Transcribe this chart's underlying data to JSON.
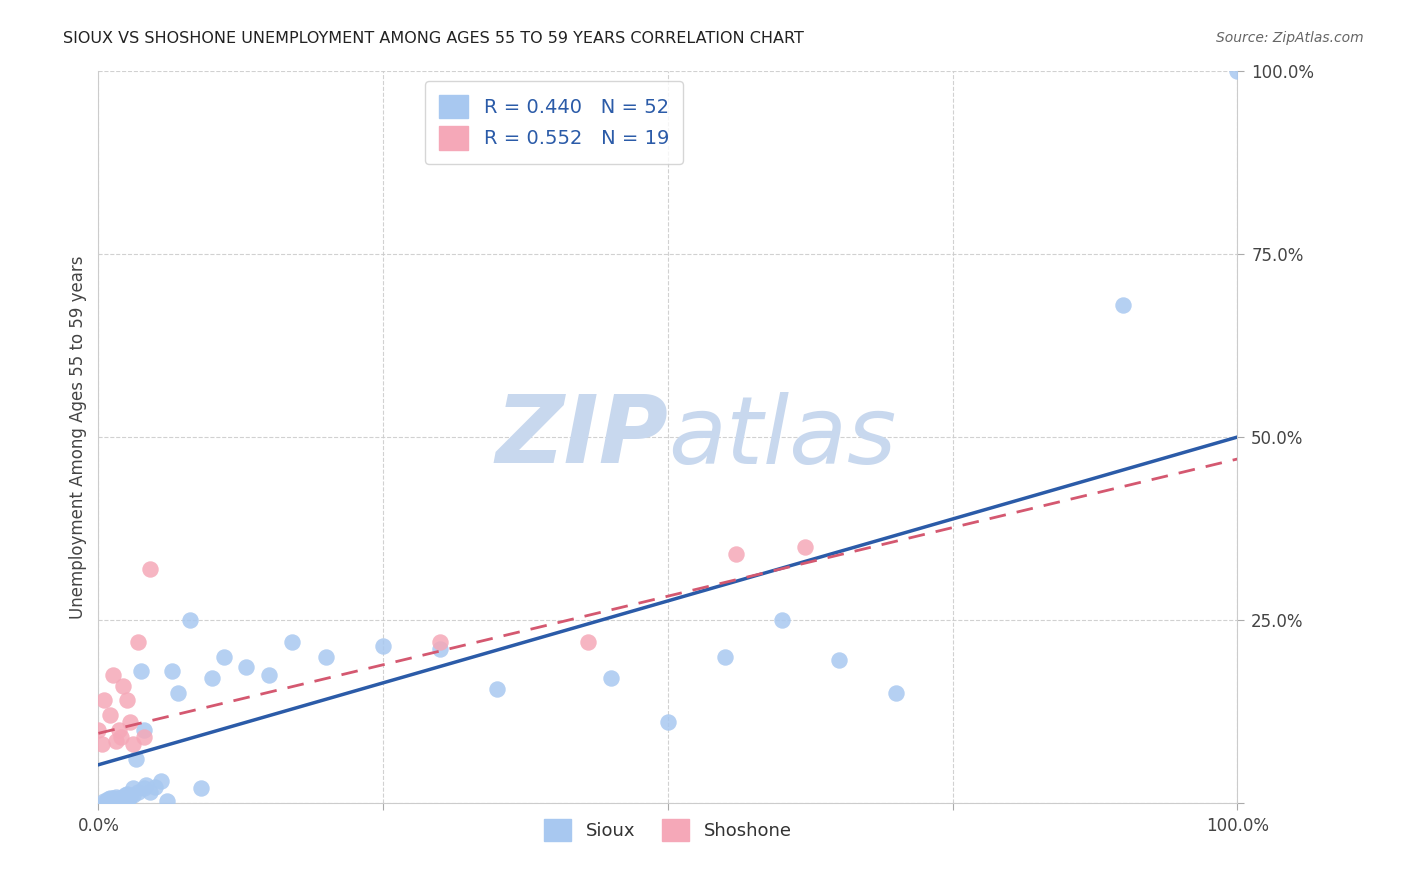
{
  "title": "SIOUX VS SHOSHONE UNEMPLOYMENT AMONG AGES 55 TO 59 YEARS CORRELATION CHART",
  "source": "Source: ZipAtlas.com",
  "ylabel": "Unemployment Among Ages 55 to 59 years",
  "xlim": [
    0,
    1.0
  ],
  "ylim": [
    0,
    1.0
  ],
  "xticks": [
    0.0,
    0.25,
    0.5,
    0.75,
    1.0
  ],
  "xticklabels": [
    "0.0%",
    "",
    "",
    "",
    "100.0%"
  ],
  "yticks": [
    0.0,
    0.25,
    0.5,
    0.75,
    1.0
  ],
  "yticklabels": [
    "",
    "25.0%",
    "50.0%",
    "75.0%",
    "100.0%"
  ],
  "sioux_R": 0.44,
  "sioux_N": 52,
  "shoshone_R": 0.552,
  "shoshone_N": 19,
  "sioux_color": "#A8C8F0",
  "shoshone_color": "#F5A8B8",
  "sioux_line_color": "#2B5BA8",
  "shoshone_line_color": "#D45870",
  "legend_text_color": "#2B5BA8",
  "watermark_zip_color": "#C8D8EE",
  "watermark_atlas_color": "#C8D8EE",
  "background_color": "#FFFFFF",
  "grid_color": "#CCCCCC",
  "sioux_x": [
    0.005,
    0.007,
    0.008,
    0.01,
    0.01,
    0.012,
    0.013,
    0.015,
    0.015,
    0.017,
    0.018,
    0.02,
    0.02,
    0.022,
    0.023,
    0.025,
    0.025,
    0.027,
    0.028,
    0.03,
    0.03,
    0.033,
    0.035,
    0.037,
    0.04,
    0.04,
    0.042,
    0.045,
    0.05,
    0.055,
    0.06,
    0.065,
    0.07,
    0.08,
    0.09,
    0.1,
    0.11,
    0.13,
    0.15,
    0.17,
    0.2,
    0.25,
    0.3,
    0.35,
    0.45,
    0.5,
    0.55,
    0.6,
    0.65,
    0.7,
    0.9,
    1.0
  ],
  "sioux_y": [
    0.002,
    0.003,
    0.005,
    0.004,
    0.006,
    0.003,
    0.007,
    0.005,
    0.008,
    0.004,
    0.006,
    0.003,
    0.005,
    0.007,
    0.01,
    0.008,
    0.012,
    0.006,
    0.009,
    0.01,
    0.02,
    0.06,
    0.015,
    0.18,
    0.02,
    0.1,
    0.025,
    0.015,
    0.022,
    0.03,
    0.002,
    0.18,
    0.15,
    0.25,
    0.02,
    0.17,
    0.2,
    0.185,
    0.175,
    0.22,
    0.2,
    0.215,
    0.21,
    0.155,
    0.17,
    0.11,
    0.2,
    0.25,
    0.195,
    0.15,
    0.68,
    1.0
  ],
  "shoshone_x": [
    0.0,
    0.003,
    0.005,
    0.01,
    0.013,
    0.015,
    0.018,
    0.02,
    0.022,
    0.025,
    0.028,
    0.03,
    0.035,
    0.04,
    0.045,
    0.3,
    0.43,
    0.56,
    0.62
  ],
  "shoshone_y": [
    0.1,
    0.08,
    0.14,
    0.12,
    0.175,
    0.085,
    0.1,
    0.09,
    0.16,
    0.14,
    0.11,
    0.08,
    0.22,
    0.09,
    0.32,
    0.22,
    0.22,
    0.34,
    0.35
  ],
  "sioux_line_x0": 0.0,
  "sioux_line_y0": 0.052,
  "sioux_line_x1": 1.0,
  "sioux_line_y1": 0.5,
  "shoshone_line_x0": 0.0,
  "shoshone_line_y0": 0.095,
  "shoshone_line_x1": 1.0,
  "shoshone_line_y1": 0.47
}
